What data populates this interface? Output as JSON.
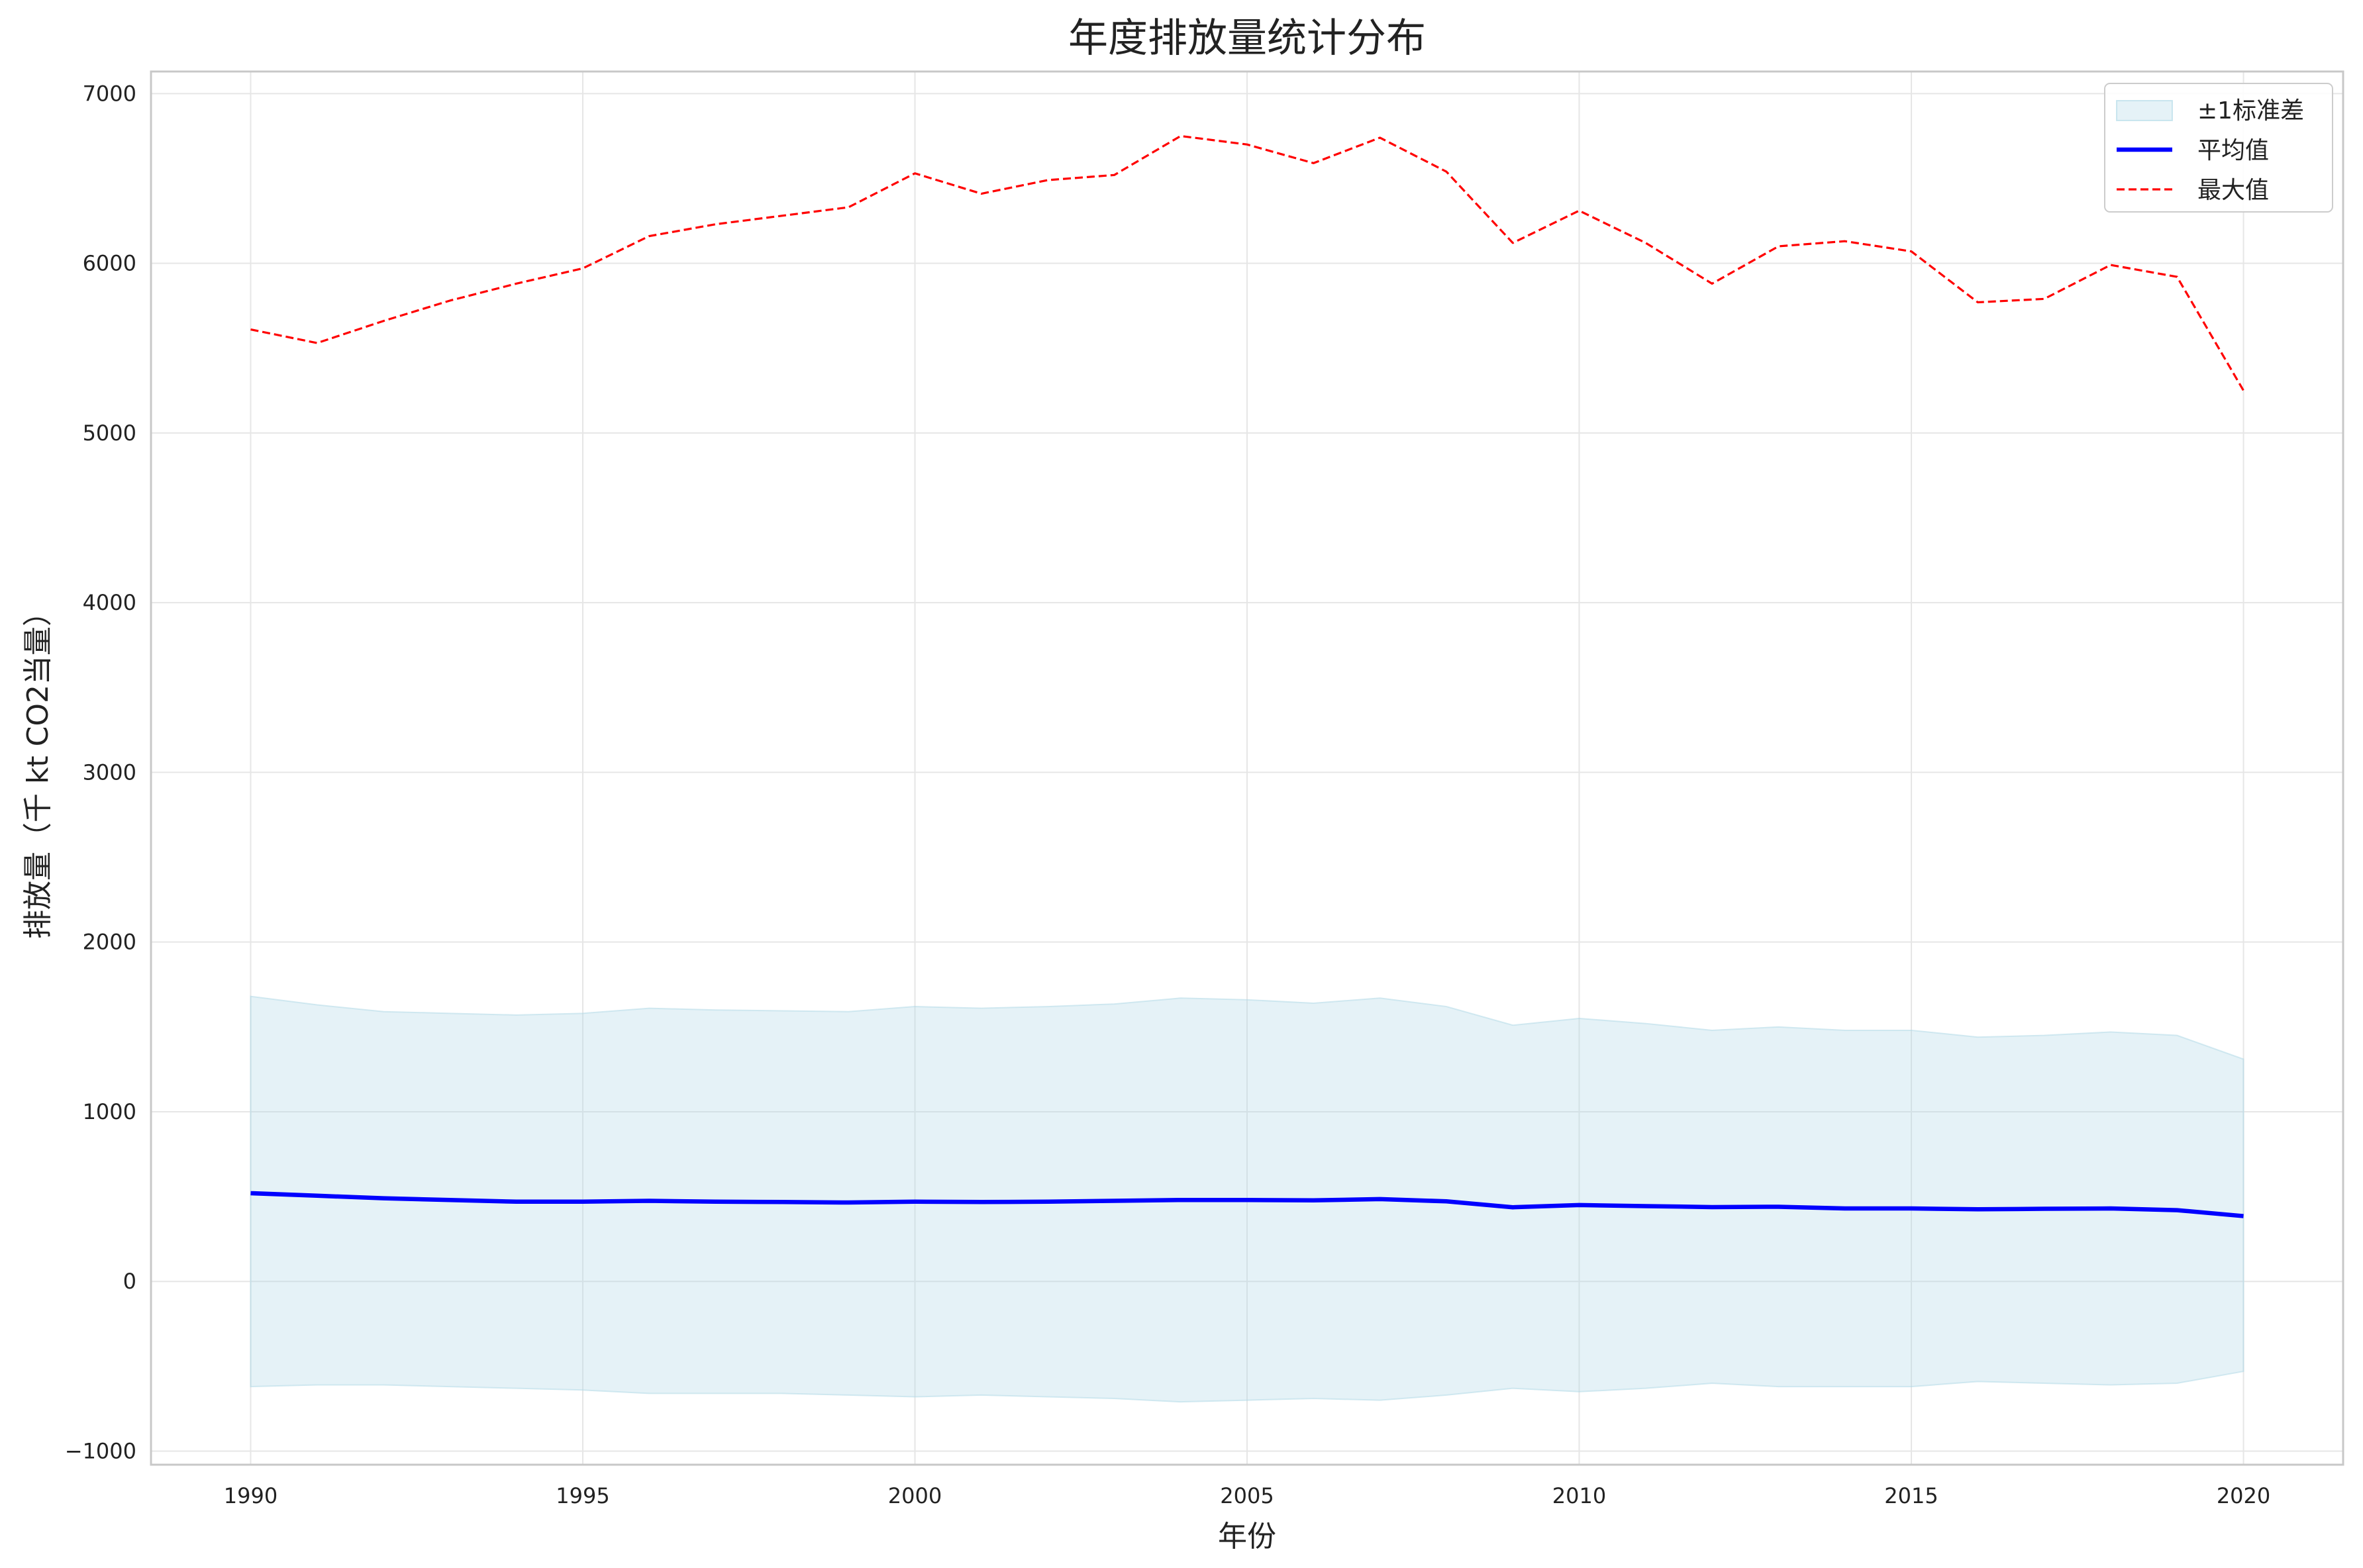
{
  "chart_data": {
    "type": "line",
    "title": "年度排放量统计分布",
    "xlabel": "年份",
    "ylabel": "排放量（千 kt CO2当量）",
    "xlim": [
      1988.5,
      2021.5
    ],
    "ylim": [
      -1080,
      7130
    ],
    "x_ticks": [
      1990,
      1995,
      2000,
      2005,
      2010,
      2015,
      2020
    ],
    "y_ticks": [
      -1000,
      0,
      1000,
      2000,
      3000,
      4000,
      5000,
      6000,
      7000
    ],
    "grid": true,
    "legend_position": "top-right",
    "x": [
      1990,
      1991,
      1992,
      1993,
      1994,
      1995,
      1996,
      1997,
      1998,
      1999,
      2000,
      2001,
      2002,
      2003,
      2004,
      2005,
      2006,
      2007,
      2008,
      2009,
      2010,
      2011,
      2012,
      2013,
      2014,
      2015,
      2016,
      2017,
      2018,
      2019,
      2020
    ],
    "series": [
      {
        "name": "±1标准差",
        "kind": "band",
        "color": "#add8e6",
        "upper": [
          1680,
          1630,
          1590,
          1580,
          1570,
          1580,
          1610,
          1600,
          1595,
          1590,
          1620,
          1610,
          1620,
          1635,
          1670,
          1660,
          1640,
          1670,
          1620,
          1510,
          1550,
          1520,
          1480,
          1500,
          1480,
          1480,
          1440,
          1450,
          1470,
          1450,
          1310
        ],
        "lower": [
          -620,
          -610,
          -610,
          -620,
          -630,
          -640,
          -660,
          -660,
          -660,
          -670,
          -680,
          -670,
          -680,
          -690,
          -710,
          -700,
          -690,
          -700,
          -670,
          -630,
          -650,
          -630,
          -600,
          -620,
          -620,
          -620,
          -590,
          -600,
          -610,
          -600,
          -530
        ]
      },
      {
        "name": "平均值",
        "kind": "line",
        "color": "#0000ff",
        "values": [
          520,
          505,
          490,
          480,
          470,
          470,
          475,
          470,
          468,
          465,
          470,
          468,
          470,
          475,
          480,
          480,
          478,
          485,
          472,
          437,
          450,
          444,
          438,
          440,
          430,
          430,
          425,
          428,
          430,
          420,
          385
        ]
      },
      {
        "name": "最大值",
        "kind": "dashed",
        "color": "#ff0000",
        "values": [
          5610,
          5530,
          5660,
          5780,
          5880,
          5970,
          6160,
          6230,
          6280,
          6330,
          6530,
          6410,
          6490,
          6520,
          6750,
          6700,
          6590,
          6740,
          6540,
          6120,
          6310,
          6120,
          5880,
          6100,
          6130,
          6070,
          5770,
          5790,
          5990,
          5920,
          5250
        ]
      }
    ]
  }
}
